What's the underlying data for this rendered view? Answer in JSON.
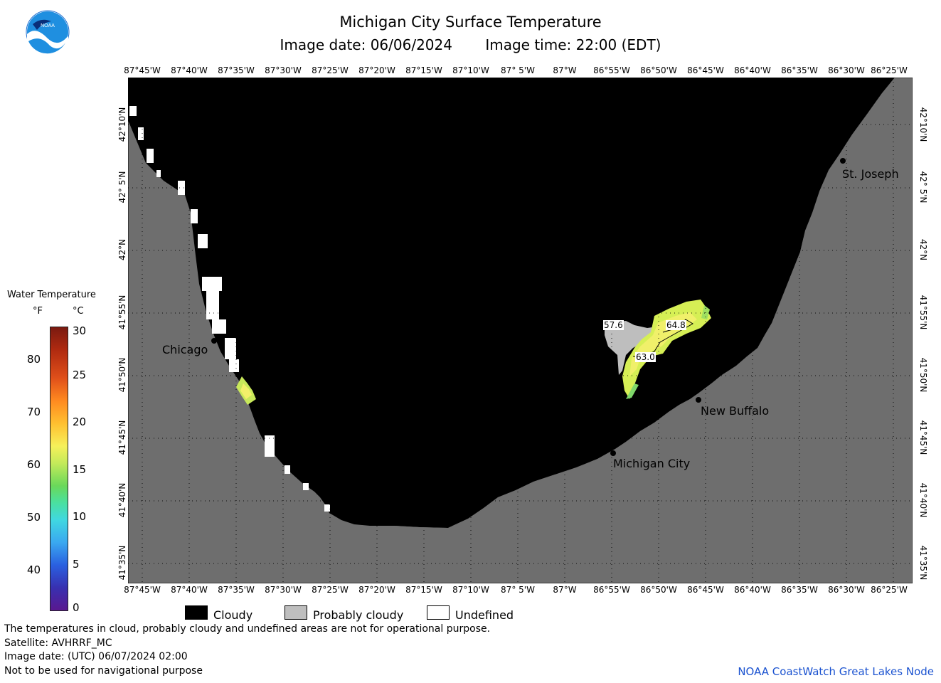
{
  "header": {
    "title": "Michigan City Surface Temperature",
    "date_label": "Image date: 06/06/2024",
    "time_label": "Image time: 22:00 (EDT)",
    "logo_text": "NOAA"
  },
  "axes": {
    "lon_ticks": [
      "87°45'W",
      "87°40'W",
      "87°35'W",
      "87°30'W",
      "87°25'W",
      "87°20'W",
      "87°15'W",
      "87°10'W",
      "87° 5'W",
      "87°W",
      "86°55'W",
      "86°50'W",
      "86°45'W",
      "86°40'W",
      "86°35'W",
      "86°30'W",
      "86°25'W"
    ],
    "lat_ticks": [
      "42°10'N",
      "42° 5'N",
      "42°N",
      "41°55'N",
      "41°50'N",
      "41°45'N",
      "41°40'N",
      "41°35'N"
    ]
  },
  "places": {
    "chicago": "Chicago",
    "michigan_city": "Michigan City",
    "new_buffalo": "New Buffalo",
    "st_joseph": "St. Joseph"
  },
  "contours": {
    "a": "57.6",
    "b": "64.8",
    "c": "63.0"
  },
  "legend": {
    "title": "Water Temperature",
    "unit_f": "°F",
    "unit_c": "°C",
    "f_ticks": [
      "80",
      "70",
      "60",
      "50",
      "40"
    ],
    "c_ticks": [
      "30",
      "25",
      "20",
      "15",
      "10",
      "5",
      "0"
    ]
  },
  "key": {
    "cloudy": "Cloudy",
    "probably_cloudy": "Probably cloudy",
    "undefined": "Undefined"
  },
  "footer": {
    "note": "The temperatures in cloud, probably cloudy and undefined areas are not for operational purpose.",
    "satellite": "Satellite: AVHRRF_MC",
    "utc_date": "Image date: (UTC) 06/07/2024  02:00",
    "nav_warning": "Not to be used for navigational purpose",
    "credit": "NOAA CoastWatch Great Lakes Node"
  },
  "colors": {
    "land": "#6e6e6e",
    "cloudy": "#000000",
    "probably_cloudy": "#bebebe",
    "undefined": "#ffffff",
    "credit": "#1a52d0"
  }
}
